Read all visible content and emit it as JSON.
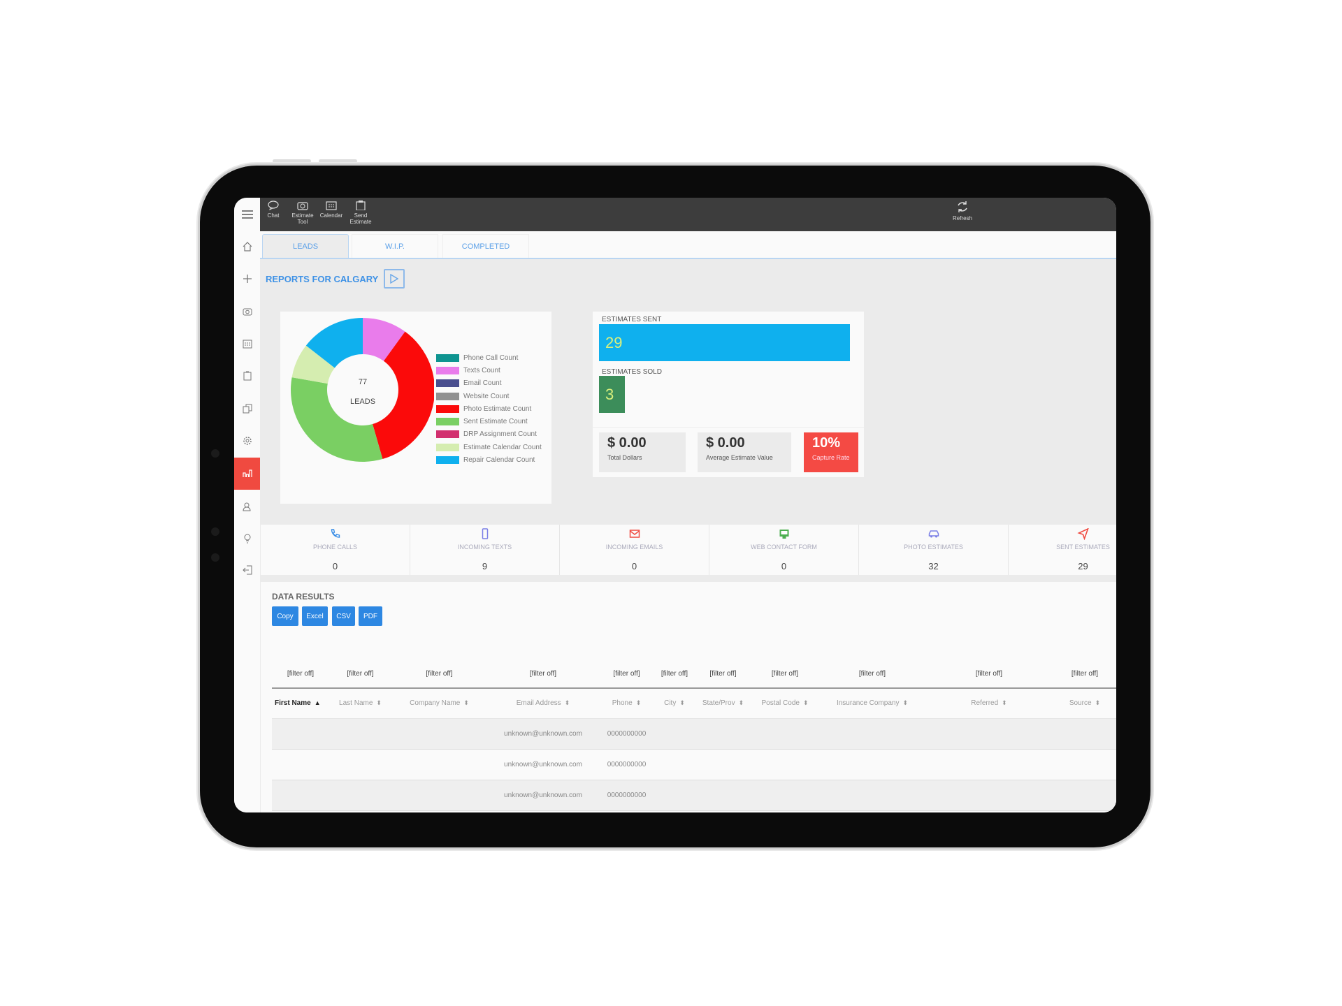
{
  "topbar": {
    "items": [
      {
        "label": "Chat",
        "icon": "chat-icon"
      },
      {
        "label": "Estimate Tool",
        "icon": "camera-icon"
      },
      {
        "label": "Calendar",
        "icon": "calendar-icon"
      },
      {
        "label": "Send Estimate",
        "icon": "clipboard-icon"
      }
    ],
    "refresh": "Refresh"
  },
  "sidebar": {
    "items": [
      "home-icon",
      "plus-icon",
      "camera-icon",
      "calendar-icon",
      "clipboard-icon",
      "copy-icon",
      "gear-icon",
      "bar-chart-icon",
      "users-icon",
      "lightbulb-icon",
      "logout-icon"
    ],
    "active": "bar-chart-icon",
    "active_color": "#f04a40"
  },
  "tabs": [
    "LEADS",
    "W.I.P.",
    "COMPLETED"
  ],
  "reports_title": "REPORTS FOR CALGARY",
  "chart_data": {
    "type": "pie",
    "center_value": "77",
    "center_label": "LEADS",
    "legend_position": "right",
    "categories": [
      "Phone Call Count",
      "Texts Count",
      "Email Count",
      "Website Count",
      "Photo Estimate Count",
      "Sent Estimate Count",
      "DRP Assignment Count",
      "Estimate Calendar Count",
      "Repair Calendar Count"
    ],
    "values": [
      0,
      9,
      0,
      0,
      32,
      29,
      0,
      7,
      13
    ],
    "colors": [
      "#0e9490",
      "#e97ceb",
      "#4a4f8f",
      "#919191",
      "#fb0a0a",
      "#7acf63",
      "#d2306f",
      "#d5edb0",
      "#0fb0ee"
    ]
  },
  "estimates": {
    "sent_label": "ESTIMATES SENT",
    "sent": 29,
    "sold_label": "ESTIMATES SOLD",
    "sold": 3,
    "sent_color": "#0fb0ee",
    "sold_color": "#3c8d5a",
    "total_dollars": "$ 0.00",
    "total_dollars_label": "Total Dollars",
    "avg_value": "$ 0.00",
    "avg_value_label": "Average Estimate Value",
    "capture_rate": "10%",
    "capture_rate_label": "Capture Rate"
  },
  "stats": [
    {
      "label": "PHONE CALLS",
      "value": "0",
      "icon": "phone-icon",
      "color": "#3a8ee6"
    },
    {
      "label": "INCOMING TEXTS",
      "value": "9",
      "icon": "mobile-icon",
      "color": "#7b7fe6"
    },
    {
      "label": "INCOMING EMAILS",
      "value": "0",
      "icon": "mail-icon",
      "color": "#f04a40"
    },
    {
      "label": "WEB CONTACT FORM",
      "value": "0",
      "icon": "monitor-icon",
      "color": "#4caf50"
    },
    {
      "label": "PHOTO ESTIMATES",
      "value": "32",
      "icon": "car-icon",
      "color": "#7b7fe6"
    },
    {
      "label": "SENT ESTIMATES",
      "value": "29",
      "icon": "send-icon",
      "color": "#f04a40"
    }
  ],
  "results": {
    "title": "DATA RESULTS",
    "buttons": [
      "Copy",
      "Excel",
      "CSV",
      "PDF"
    ],
    "filter": "[filter off]",
    "columns": [
      "First Name",
      "Last Name",
      "Company Name",
      "Email Address",
      "Phone",
      "City",
      "State/Prov",
      "Postal Code",
      "Insurance Company",
      "Referred",
      "Source"
    ],
    "rows": [
      [
        "",
        "",
        "",
        "unknown@unknown.com",
        "0000000000",
        "",
        "",
        "",
        "",
        "",
        ""
      ],
      [
        "",
        "",
        "",
        "unknown@unknown.com",
        "0000000000",
        "",
        "",
        "",
        "",
        "",
        ""
      ],
      [
        "",
        "",
        "",
        "unknown@unknown.com",
        "0000000000",
        "",
        "",
        "",
        "",
        "",
        ""
      ]
    ]
  }
}
